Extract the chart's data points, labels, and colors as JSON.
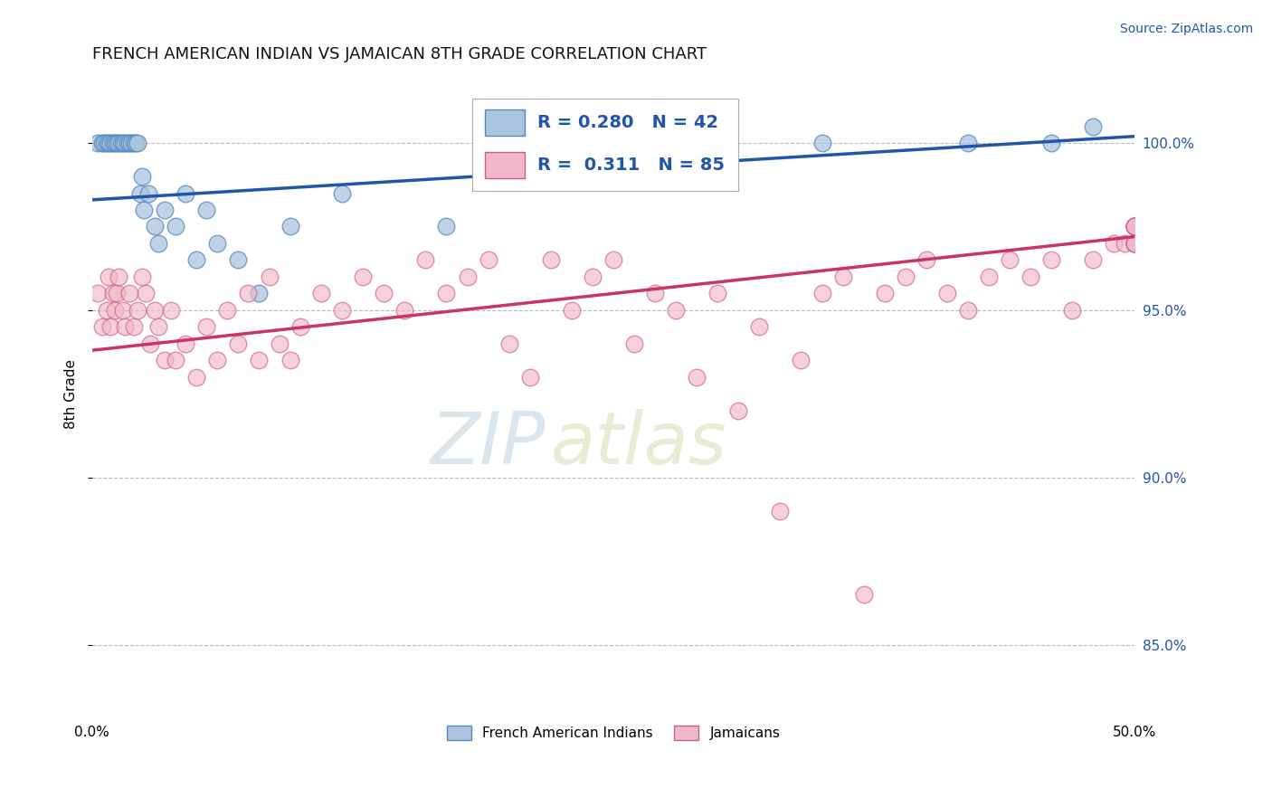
{
  "title": "FRENCH AMERICAN INDIAN VS JAMAICAN 8TH GRADE CORRELATION CHART",
  "source_text": "Source: ZipAtlas.com",
  "watermark_zip": "ZIP",
  "watermark_atlas": "atlas",
  "ylabel": "8th Grade",
  "xlim": [
    0.0,
    50.0
  ],
  "ylim": [
    83.0,
    102.0
  ],
  "yticks": [
    85.0,
    90.0,
    95.0,
    100.0
  ],
  "ytick_labels": [
    "85.0%",
    "90.0%",
    "95.0%",
    "100.0%"
  ],
  "blue_R": 0.28,
  "blue_N": 42,
  "pink_R": 0.311,
  "pink_N": 85,
  "legend_label_blue": "French American Indians",
  "legend_label_pink": "Jamaicans",
  "blue_color": "#aac4e0",
  "pink_color": "#f0b8c8",
  "blue_edge_color": "#5588bb",
  "pink_edge_color": "#d06080",
  "blue_line_color": "#2255aa",
  "pink_line_color": "#cc3366",
  "label_color": "#2255aa",
  "blue_scatter_x": [
    0.3,
    0.5,
    0.6,
    0.7,
    0.8,
    0.9,
    1.0,
    1.1,
    1.2,
    1.3,
    1.4,
    1.5,
    1.6,
    1.7,
    1.8,
    1.9,
    2.0,
    2.1,
    2.2,
    2.3,
    2.4,
    2.5,
    2.7,
    3.0,
    3.2,
    3.5,
    4.0,
    4.5,
    5.0,
    5.5,
    6.0,
    7.0,
    8.0,
    9.5,
    12.0,
    17.0,
    22.0,
    27.0,
    35.0,
    42.0,
    46.0,
    48.0
  ],
  "blue_scatter_y": [
    100.0,
    100.0,
    100.0,
    100.0,
    100.0,
    100.0,
    100.0,
    100.0,
    100.0,
    100.0,
    100.0,
    100.0,
    100.0,
    100.0,
    100.0,
    100.0,
    100.0,
    100.0,
    100.0,
    98.5,
    99.0,
    98.0,
    98.5,
    97.5,
    97.0,
    98.0,
    97.5,
    98.5,
    96.5,
    98.0,
    97.0,
    96.5,
    95.5,
    97.5,
    98.5,
    97.5,
    99.0,
    99.5,
    100.0,
    100.0,
    100.0,
    100.5
  ],
  "pink_scatter_x": [
    0.3,
    0.5,
    0.7,
    0.8,
    0.9,
    1.0,
    1.1,
    1.2,
    1.3,
    1.5,
    1.6,
    1.8,
    2.0,
    2.2,
    2.4,
    2.6,
    2.8,
    3.0,
    3.2,
    3.5,
    3.8,
    4.0,
    4.5,
    5.0,
    5.5,
    6.0,
    6.5,
    7.0,
    7.5,
    8.0,
    8.5,
    9.0,
    9.5,
    10.0,
    11.0,
    12.0,
    13.0,
    14.0,
    15.0,
    16.0,
    17.0,
    18.0,
    19.0,
    20.0,
    21.0,
    22.0,
    23.0,
    24.0,
    25.0,
    26.0,
    27.0,
    28.0,
    29.0,
    30.0,
    31.0,
    32.0,
    33.0,
    34.0,
    35.0,
    36.0,
    37.0,
    38.0,
    39.0,
    40.0,
    41.0,
    42.0,
    43.0,
    44.0,
    45.0,
    46.0,
    47.0,
    48.0,
    49.0,
    49.5,
    50.0,
    50.0,
    50.0,
    50.0,
    50.0,
    50.0,
    50.0,
    50.0,
    50.0,
    50.0,
    50.0
  ],
  "pink_scatter_y": [
    95.5,
    94.5,
    95.0,
    96.0,
    94.5,
    95.5,
    95.0,
    95.5,
    96.0,
    95.0,
    94.5,
    95.5,
    94.5,
    95.0,
    96.0,
    95.5,
    94.0,
    95.0,
    94.5,
    93.5,
    95.0,
    93.5,
    94.0,
    93.0,
    94.5,
    93.5,
    95.0,
    94.0,
    95.5,
    93.5,
    96.0,
    94.0,
    93.5,
    94.5,
    95.5,
    95.0,
    96.0,
    95.5,
    95.0,
    96.5,
    95.5,
    96.0,
    96.5,
    94.0,
    93.0,
    96.5,
    95.0,
    96.0,
    96.5,
    94.0,
    95.5,
    95.0,
    93.0,
    95.5,
    92.0,
    94.5,
    89.0,
    93.5,
    95.5,
    96.0,
    86.5,
    95.5,
    96.0,
    96.5,
    95.5,
    95.0,
    96.0,
    96.5,
    96.0,
    96.5,
    95.0,
    96.5,
    97.0,
    97.0,
    97.5,
    97.5,
    97.0,
    97.5,
    97.5,
    97.0,
    97.0,
    97.5,
    97.0,
    97.5,
    97.0
  ]
}
